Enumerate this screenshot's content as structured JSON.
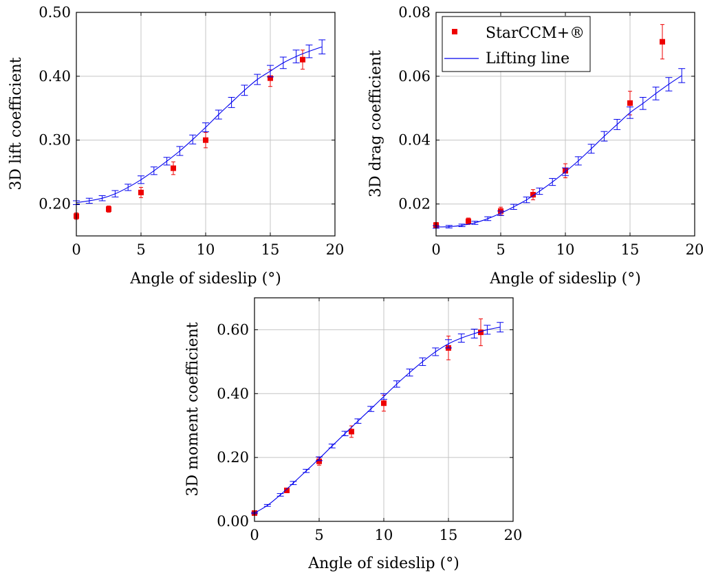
{
  "legend": {
    "items": [
      {
        "label": "StarCCM+®",
        "color": "#ee0000",
        "marker": "square"
      },
      {
        "label": "Lifting line",
        "color": "#0000ee",
        "marker": "line"
      }
    ]
  },
  "chart_data": [
    {
      "id": "lift",
      "type": "scatter",
      "xlabel": "Angle of sideslip (°)",
      "ylabel": "3D lift coefficient",
      "xlim": [
        0,
        20
      ],
      "ylim": [
        0.15,
        0.5
      ],
      "xticks": [
        0,
        5,
        10,
        15,
        20
      ],
      "xtick_labels": [
        "0",
        "5",
        "10",
        "15",
        "20"
      ],
      "yticks": [
        0.2,
        0.3,
        0.4,
        0.5
      ],
      "ytick_labels": [
        "0.20",
        "0.30",
        "0.40",
        "0.50"
      ],
      "grid": true,
      "series": [
        {
          "name": "StarCCM+®",
          "color": "#ee0000",
          "style": "markers",
          "x": [
            0,
            2.5,
            5,
            7.5,
            10,
            15,
            17.5
          ],
          "y": [
            0.181,
            0.192,
            0.218,
            0.256,
            0.3,
            0.397,
            0.426
          ],
          "err": [
            0.005,
            0.005,
            0.008,
            0.01,
            0.012,
            0.013,
            0.015
          ]
        },
        {
          "name": "Lifting line",
          "color": "#0000ee",
          "style": "line",
          "x": [
            0,
            1,
            2,
            3,
            4,
            5,
            6,
            7,
            8,
            9,
            10,
            11,
            12,
            13,
            14,
            15,
            16,
            17,
            18,
            19
          ],
          "y": [
            0.202,
            0.205,
            0.209,
            0.216,
            0.226,
            0.238,
            0.252,
            0.267,
            0.283,
            0.301,
            0.32,
            0.34,
            0.359,
            0.378,
            0.395,
            0.408,
            0.421,
            0.431,
            0.439,
            0.446
          ],
          "err": [
            0.003,
            0.004,
            0.004,
            0.005,
            0.005,
            0.006,
            0.006,
            0.006,
            0.007,
            0.007,
            0.007,
            0.007,
            0.008,
            0.008,
            0.008,
            0.009,
            0.009,
            0.01,
            0.01,
            0.011
          ]
        }
      ]
    },
    {
      "id": "drag",
      "type": "scatter",
      "xlabel": "Angle of sideslip (°)",
      "ylabel": "3D drag coefficient",
      "xlim": [
        0,
        20
      ],
      "ylim": [
        0.01,
        0.08
      ],
      "xticks": [
        0,
        5,
        10,
        15,
        20
      ],
      "xtick_labels": [
        "0",
        "5",
        "10",
        "15",
        "20"
      ],
      "yticks": [
        0.02,
        0.04,
        0.06,
        0.08
      ],
      "ytick_labels": [
        "0.02",
        "0.04",
        "0.06",
        "0.08"
      ],
      "grid": true,
      "legend_position": "top-left",
      "series": [
        {
          "name": "StarCCM+®",
          "color": "#ee0000",
          "style": "markers",
          "x": [
            0,
            2.5,
            5,
            7.5,
            10,
            15,
            17.5
          ],
          "y": [
            0.0134,
            0.0146,
            0.0178,
            0.0229,
            0.0304,
            0.0516,
            0.0708
          ],
          "err": [
            0.0008,
            0.001,
            0.0012,
            0.0016,
            0.0022,
            0.0037,
            0.0054
          ]
        },
        {
          "name": "Lifting line",
          "color": "#0000ee",
          "style": "line",
          "x": [
            0,
            1,
            2,
            3,
            4,
            5,
            6,
            7,
            8,
            9,
            10,
            11,
            12,
            13,
            14,
            15,
            16,
            17,
            18,
            19
          ],
          "y": [
            0.0128,
            0.0129,
            0.0133,
            0.0141,
            0.0154,
            0.0171,
            0.0191,
            0.0213,
            0.024,
            0.0269,
            0.0301,
            0.0335,
            0.0373,
            0.0412,
            0.0449,
            0.0486,
            0.0515,
            0.0546,
            0.0575,
            0.0602
          ],
          "err": [
            0.0004,
            0.0004,
            0.0004,
            0.0005,
            0.0006,
            0.0007,
            0.0008,
            0.0009,
            0.001,
            0.0011,
            0.0012,
            0.0013,
            0.0014,
            0.0015,
            0.0016,
            0.0018,
            0.0019,
            0.002,
            0.0021,
            0.0022
          ]
        }
      ]
    },
    {
      "id": "moment",
      "type": "scatter",
      "xlabel": "Angle of sideslip (°)",
      "ylabel": "3D moment coefficient",
      "xlim": [
        0,
        20
      ],
      "ylim": [
        0.0,
        0.7
      ],
      "xticks": [
        0,
        5,
        10,
        15,
        20
      ],
      "xtick_labels": [
        "0",
        "5",
        "10",
        "15",
        "20"
      ],
      "yticks": [
        0.0,
        0.2,
        0.4,
        0.6
      ],
      "ytick_labels": [
        "0.00",
        "0.20",
        "0.40",
        "0.60"
      ],
      "grid": true,
      "series": [
        {
          "name": "StarCCM+®",
          "color": "#ee0000",
          "style": "markers",
          "x": [
            0,
            2.5,
            5,
            7.5,
            10,
            15,
            17.5
          ],
          "y": [
            0.026,
            0.097,
            0.188,
            0.281,
            0.37,
            0.543,
            0.592
          ],
          "err": [
            0.003,
            0.006,
            0.012,
            0.018,
            0.025,
            0.037,
            0.042
          ]
        },
        {
          "name": "Lifting line",
          "color": "#0000ee",
          "style": "line",
          "x": [
            0,
            1,
            2,
            3,
            4,
            5,
            6,
            7,
            8,
            9,
            10,
            11,
            12,
            13,
            14,
            15,
            16,
            17,
            18,
            19
          ],
          "y": [
            0.026,
            0.05,
            0.083,
            0.12,
            0.158,
            0.196,
            0.236,
            0.275,
            0.314,
            0.352,
            0.391,
            0.43,
            0.466,
            0.5,
            0.531,
            0.556,
            0.574,
            0.588,
            0.6,
            0.608
          ],
          "err": [
            0.002,
            0.003,
            0.004,
            0.005,
            0.005,
            0.006,
            0.006,
            0.007,
            0.007,
            0.008,
            0.009,
            0.01,
            0.011,
            0.012,
            0.012,
            0.013,
            0.013,
            0.014,
            0.014,
            0.015
          ]
        }
      ]
    }
  ]
}
